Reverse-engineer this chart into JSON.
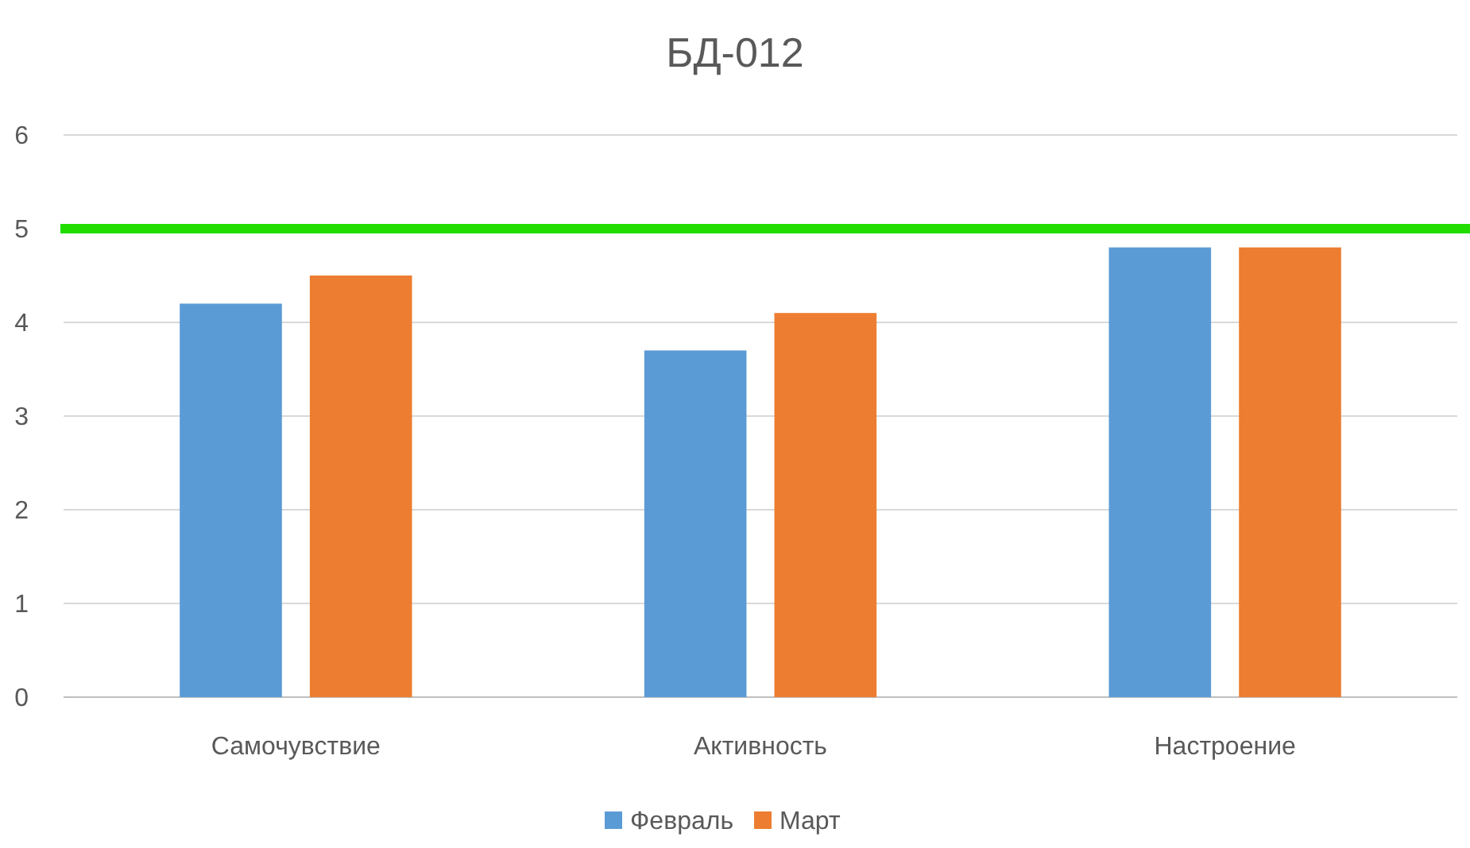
{
  "chart_data": {
    "type": "bar",
    "title": "БД-012",
    "categories": [
      "Самочувствие",
      "Активность",
      "Настроение"
    ],
    "series": [
      {
        "name": "Февраль",
        "color": "#5b9bd5",
        "values": [
          4.2,
          3.7,
          4.8
        ]
      },
      {
        "name": "Март",
        "color": "#ed7d31",
        "values": [
          4.5,
          4.1,
          4.8
        ]
      }
    ],
    "ylim": [
      0,
      6
    ],
    "yticks": [
      0,
      1,
      2,
      3,
      4,
      5,
      6
    ],
    "grid": "y",
    "legend": "bottom",
    "ref_lines": [
      {
        "axis": "y",
        "value": 5,
        "color": "#22dd00"
      }
    ]
  }
}
